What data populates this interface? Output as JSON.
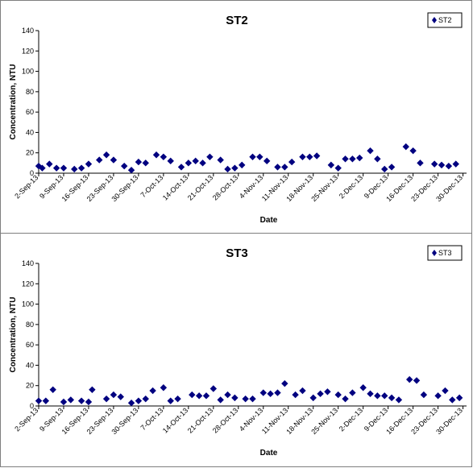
{
  "chart_data": [
    {
      "type": "scatter",
      "title": "ST2",
      "xlabel": "Date",
      "ylabel": "Concentration, NTU",
      "ylim": [
        0,
        140
      ],
      "yticks": [
        0,
        20,
        40,
        60,
        80,
        100,
        120,
        140
      ],
      "xlim": [
        "2-Sep-13",
        "31-Dec-13"
      ],
      "xticks": [
        "2-Sep-13",
        "9-Sep-13",
        "16-Sep-13",
        "23-Sep-13",
        "30-Sep-13",
        "7-Oct-13",
        "14-Oct-13",
        "21-Oct-13",
        "28-Oct-13",
        "4-Nov-13",
        "11-Nov-13",
        "18-Nov-13",
        "25-Nov-13",
        "2-Dec-13",
        "9-Dec-13",
        "16-Dec-13",
        "23-Dec-13",
        "30-Dec-13"
      ],
      "grid": false,
      "legend_position": "top-right",
      "color": "#000080",
      "marker": "diamond",
      "series": [
        {
          "name": "ST2",
          "points": [
            [
              "2-Sep-13",
              7
            ],
            [
              "3-Sep-13",
              5
            ],
            [
              "5-Sep-13",
              9
            ],
            [
              "7-Sep-13",
              5
            ],
            [
              "9-Sep-13",
              5
            ],
            [
              "12-Sep-13",
              4
            ],
            [
              "14-Sep-13",
              5
            ],
            [
              "16-Sep-13",
              9
            ],
            [
              "19-Sep-13",
              13
            ],
            [
              "21-Sep-13",
              18
            ],
            [
              "23-Sep-13",
              13
            ],
            [
              "26-Sep-13",
              7
            ],
            [
              "28-Sep-13",
              3
            ],
            [
              "30-Sep-13",
              11
            ],
            [
              "2-Oct-13",
              10
            ],
            [
              "5-Oct-13",
              18
            ],
            [
              "7-Oct-13",
              16
            ],
            [
              "9-Oct-13",
              12
            ],
            [
              "12-Oct-13",
              6
            ],
            [
              "14-Oct-13",
              10
            ],
            [
              "16-Oct-13",
              12
            ],
            [
              "18-Oct-13",
              10
            ],
            [
              "20-Oct-13",
              16
            ],
            [
              "23-Oct-13",
              13
            ],
            [
              "25-Oct-13",
              4
            ],
            [
              "27-Oct-13",
              5
            ],
            [
              "29-Oct-13",
              8
            ],
            [
              "1-Nov-13",
              16
            ],
            [
              "3-Nov-13",
              16
            ],
            [
              "5-Nov-13",
              12
            ],
            [
              "8-Nov-13",
              6
            ],
            [
              "10-Nov-13",
              6
            ],
            [
              "12-Nov-13",
              11
            ],
            [
              "15-Nov-13",
              16
            ],
            [
              "17-Nov-13",
              16
            ],
            [
              "19-Nov-13",
              17
            ],
            [
              "23-Nov-13",
              8
            ],
            [
              "25-Nov-13",
              5
            ],
            [
              "27-Nov-13",
              14
            ],
            [
              "29-Nov-13",
              14
            ],
            [
              "1-Dec-13",
              15
            ],
            [
              "4-Dec-13",
              22
            ],
            [
              "6-Dec-13",
              14
            ],
            [
              "8-Dec-13",
              4
            ],
            [
              "10-Dec-13",
              6
            ],
            [
              "14-Dec-13",
              26
            ],
            [
              "16-Dec-13",
              22
            ],
            [
              "18-Dec-13",
              10
            ],
            [
              "22-Dec-13",
              9
            ],
            [
              "24-Dec-13",
              8
            ],
            [
              "26-Dec-13",
              7
            ],
            [
              "28-Dec-13",
              9
            ]
          ]
        }
      ]
    },
    {
      "type": "scatter",
      "title": "ST3",
      "xlabel": "Date",
      "ylabel": "Concentration, NTU",
      "ylim": [
        0,
        140
      ],
      "yticks": [
        0,
        20,
        40,
        60,
        80,
        100,
        120,
        140
      ],
      "xlim": [
        "2-Sep-13",
        "31-Dec-13"
      ],
      "xticks": [
        "2-Sep-13",
        "9-Sep-13",
        "16-Sep-13",
        "23-Sep-13",
        "30-Sep-13",
        "7-Oct-13",
        "14-Oct-13",
        "21-Oct-13",
        "28-Oct-13",
        "4-Nov-13",
        "11-Nov-13",
        "18-Nov-13",
        "25-Nov-13",
        "2-Dec-13",
        "9-Dec-13",
        "16-Dec-13",
        "23-Dec-13",
        "30-Dec-13"
      ],
      "grid": false,
      "legend_position": "top-right",
      "color": "#000080",
      "marker": "diamond",
      "series": [
        {
          "name": "ST3",
          "points": [
            [
              "2-Sep-13",
              5
            ],
            [
              "4-Sep-13",
              5
            ],
            [
              "6-Sep-13",
              16
            ],
            [
              "9-Sep-13",
              4
            ],
            [
              "11-Sep-13",
              6
            ],
            [
              "14-Sep-13",
              5
            ],
            [
              "16-Sep-13",
              4
            ],
            [
              "17-Sep-13",
              16
            ],
            [
              "21-Sep-13",
              7
            ],
            [
              "23-Sep-13",
              11
            ],
            [
              "25-Sep-13",
              9
            ],
            [
              "28-Sep-13",
              3
            ],
            [
              "30-Sep-13",
              5
            ],
            [
              "2-Oct-13",
              7
            ],
            [
              "4-Oct-13",
              15
            ],
            [
              "7-Oct-13",
              18
            ],
            [
              "9-Oct-13",
              5
            ],
            [
              "11-Oct-13",
              7
            ],
            [
              "15-Oct-13",
              11
            ],
            [
              "17-Oct-13",
              10
            ],
            [
              "19-Oct-13",
              10
            ],
            [
              "21-Oct-13",
              17
            ],
            [
              "23-Oct-13",
              6
            ],
            [
              "25-Oct-13",
              11
            ],
            [
              "27-Oct-13",
              8
            ],
            [
              "30-Oct-13",
              7
            ],
            [
              "1-Nov-13",
              7
            ],
            [
              "4-Nov-13",
              13
            ],
            [
              "6-Nov-13",
              12
            ],
            [
              "8-Nov-13",
              13
            ],
            [
              "10-Nov-13",
              22
            ],
            [
              "13-Nov-13",
              11
            ],
            [
              "15-Nov-13",
              15
            ],
            [
              "18-Nov-13",
              8
            ],
            [
              "20-Nov-13",
              12
            ],
            [
              "22-Nov-13",
              14
            ],
            [
              "25-Nov-13",
              11
            ],
            [
              "27-Nov-13",
              7
            ],
            [
              "29-Nov-13",
              13
            ],
            [
              "2-Dec-13",
              18
            ],
            [
              "4-Dec-13",
              12
            ],
            [
              "6-Dec-13",
              10
            ],
            [
              "8-Dec-13",
              10
            ],
            [
              "10-Dec-13",
              8
            ],
            [
              "12-Dec-13",
              6
            ],
            [
              "15-Dec-13",
              26
            ],
            [
              "17-Dec-13",
              25
            ],
            [
              "19-Dec-13",
              11
            ],
            [
              "23-Dec-13",
              10
            ],
            [
              "25-Dec-13",
              15
            ],
            [
              "27-Dec-13",
              6
            ],
            [
              "29-Dec-13",
              8
            ]
          ]
        }
      ]
    }
  ]
}
